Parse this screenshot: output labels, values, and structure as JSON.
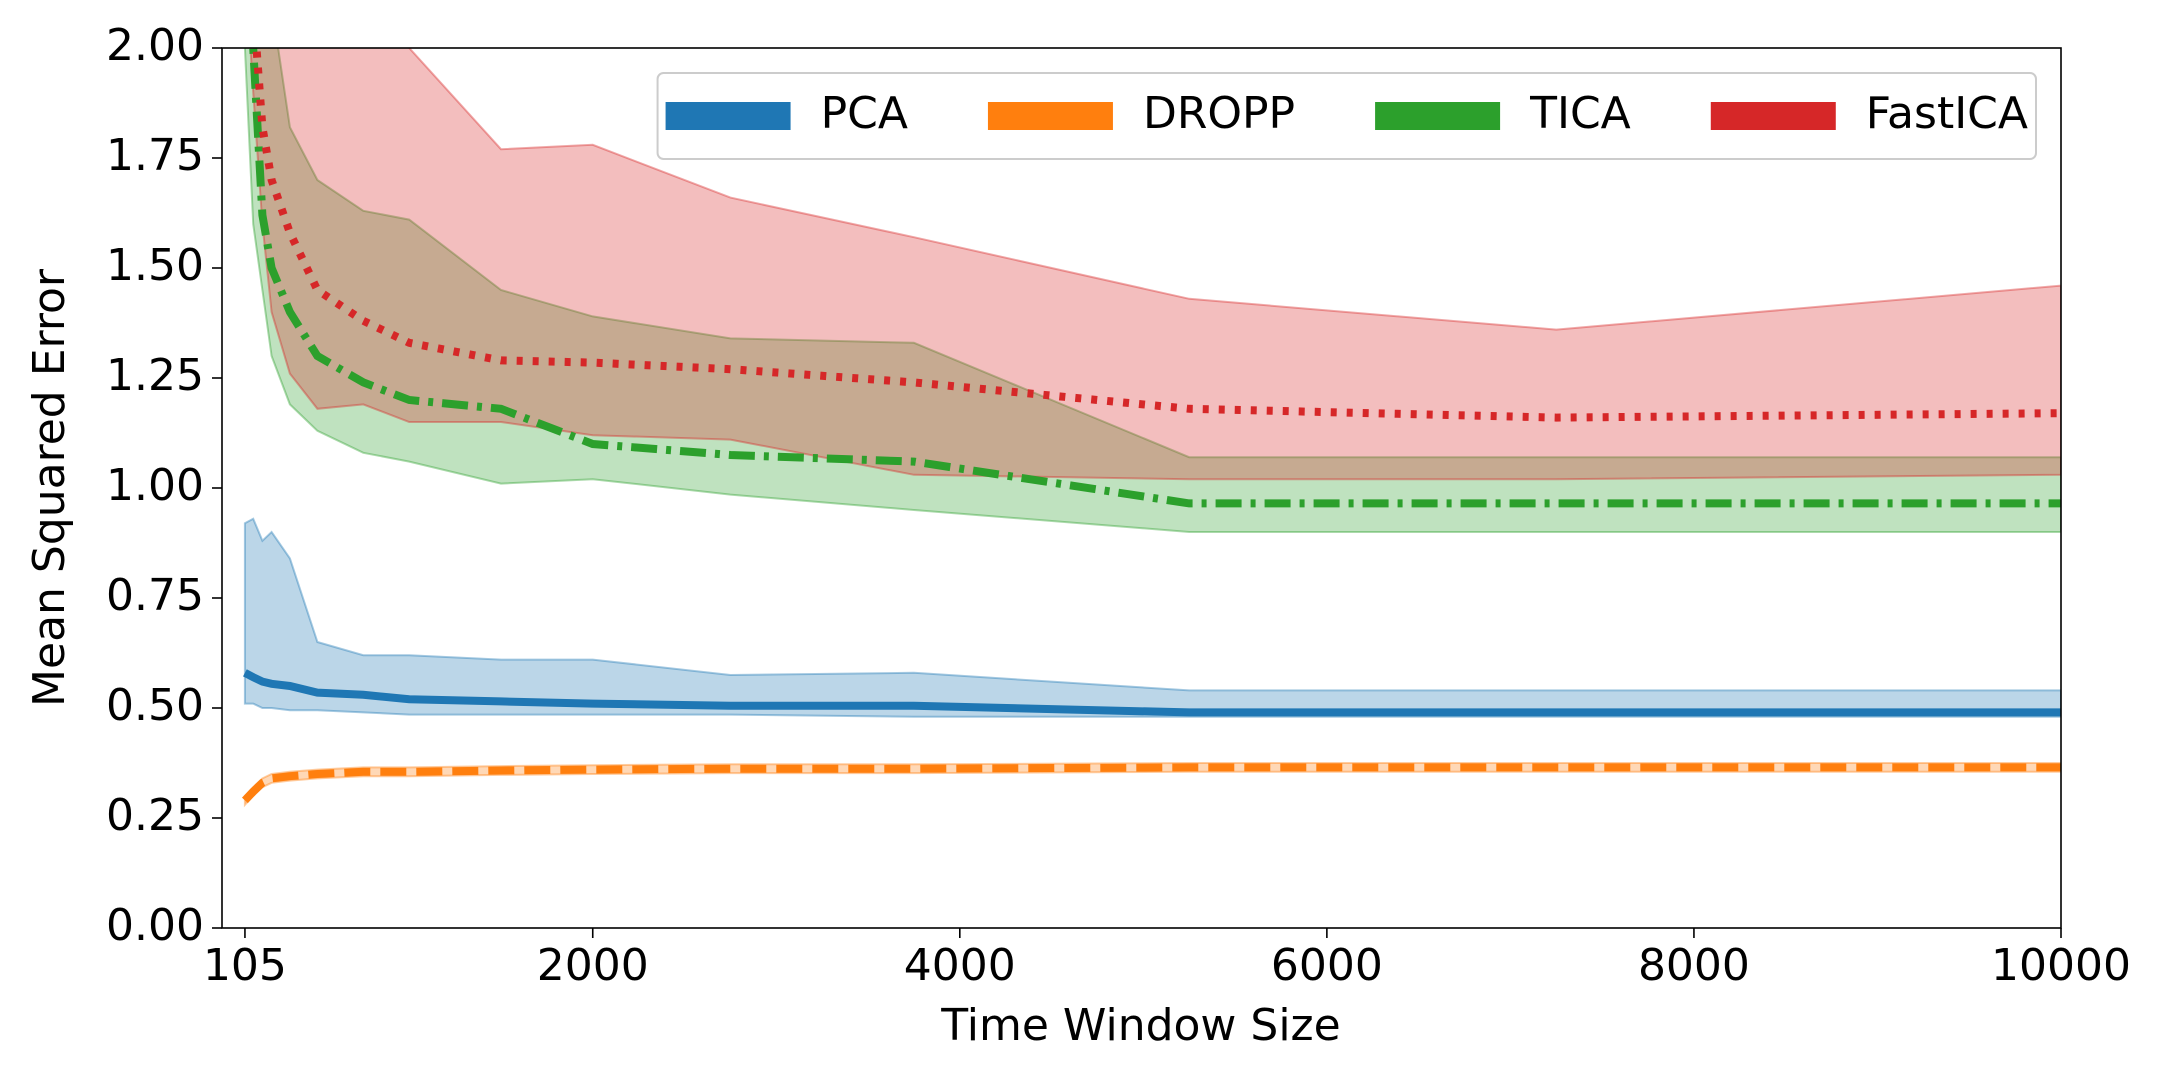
{
  "chart_data": {
    "type": "line",
    "xlabel": "Time Window Size",
    "ylabel": "Mean Squared Error",
    "x": [
      105,
      150,
      200,
      250,
      350,
      500,
      750,
      1000,
      1500,
      2000,
      2750,
      3750,
      5250,
      7250,
      10000
    ],
    "series": [
      {
        "name": "PCA",
        "color": "#1f77b4",
        "linestyle": "solid",
        "values": [
          0.58,
          0.57,
          0.56,
          0.555,
          0.55,
          0.535,
          0.53,
          0.52,
          0.515,
          0.51,
          0.505,
          0.505,
          0.49,
          0.49,
          0.49
        ],
        "lower": [
          0.51,
          0.51,
          0.5,
          0.5,
          0.495,
          0.495,
          0.49,
          0.485,
          0.485,
          0.485,
          0.485,
          0.48,
          0.48,
          0.48,
          0.48
        ],
        "upper": [
          0.92,
          0.93,
          0.88,
          0.9,
          0.84,
          0.65,
          0.62,
          0.62,
          0.61,
          0.61,
          0.575,
          0.58,
          0.54,
          0.54,
          0.54
        ]
      },
      {
        "name": "DROPP",
        "color": "#ff7f0e",
        "linestyle": "dashed",
        "values": [
          0.29,
          0.31,
          0.33,
          0.34,
          0.345,
          0.35,
          0.355,
          0.355,
          0.358,
          0.36,
          0.362,
          0.362,
          0.365,
          0.365,
          0.365
        ],
        "lower": [
          0.28,
          0.3,
          0.32,
          0.33,
          0.335,
          0.34,
          0.345,
          0.345,
          0.348,
          0.35,
          0.352,
          0.352,
          0.355,
          0.355,
          0.355
        ],
        "upper": [
          0.3,
          0.32,
          0.34,
          0.35,
          0.355,
          0.36,
          0.365,
          0.365,
          0.368,
          0.37,
          0.372,
          0.372,
          0.375,
          0.375,
          0.375
        ]
      },
      {
        "name": "TICA",
        "color": "#2ca02c",
        "linestyle": "dashdot",
        "values": [
          2.3,
          2.0,
          1.62,
          1.5,
          1.4,
          1.3,
          1.24,
          1.2,
          1.18,
          1.1,
          1.075,
          1.06,
          0.965,
          0.965,
          0.965
        ],
        "lower": [
          2.0,
          1.6,
          1.45,
          1.3,
          1.19,
          1.13,
          1.08,
          1.06,
          1.01,
          1.02,
          0.985,
          0.95,
          0.9,
          0.9,
          0.9
        ],
        "upper": [
          3.0,
          2.8,
          2.4,
          2.1,
          1.82,
          1.7,
          1.63,
          1.61,
          1.45,
          1.39,
          1.34,
          1.33,
          1.07,
          1.07,
          1.07
        ]
      },
      {
        "name": "FastICA",
        "color": "#d62728",
        "linestyle": "dotted",
        "values": [
          2.5,
          2.1,
          1.82,
          1.7,
          1.58,
          1.45,
          1.38,
          1.33,
          1.29,
          1.285,
          1.27,
          1.24,
          1.18,
          1.16,
          1.17
        ],
        "lower": [
          2.2,
          1.9,
          1.6,
          1.4,
          1.26,
          1.18,
          1.19,
          1.15,
          1.15,
          1.12,
          1.11,
          1.03,
          1.02,
          1.02,
          1.03
        ],
        "upper": [
          3.0,
          3.0,
          3.0,
          3.0,
          2.6,
          2.3,
          2.1,
          2.0,
          1.77,
          1.78,
          1.66,
          1.57,
          1.43,
          1.36,
          1.46
        ]
      }
    ],
    "xlim": [
      -20,
      10000
    ],
    "ylim": [
      0,
      2
    ],
    "xticks": [
      105,
      2000,
      4000,
      6000,
      8000,
      10000
    ],
    "yticks": [
      {
        "value": 0,
        "label": "0.00"
      },
      {
        "value": 0.25,
        "label": "0.25"
      },
      {
        "value": 0.5,
        "label": "0.50"
      },
      {
        "value": 0.75,
        "label": "0.75"
      },
      {
        "value": 1,
        "label": "1.00"
      },
      {
        "value": 1.25,
        "label": "1.25"
      },
      {
        "value": 1.5,
        "label": "1.50"
      },
      {
        "value": 1.75,
        "label": "1.75"
      },
      {
        "value": 2,
        "label": "2.00"
      }
    ],
    "legend": "upper right",
    "grid": false
  }
}
